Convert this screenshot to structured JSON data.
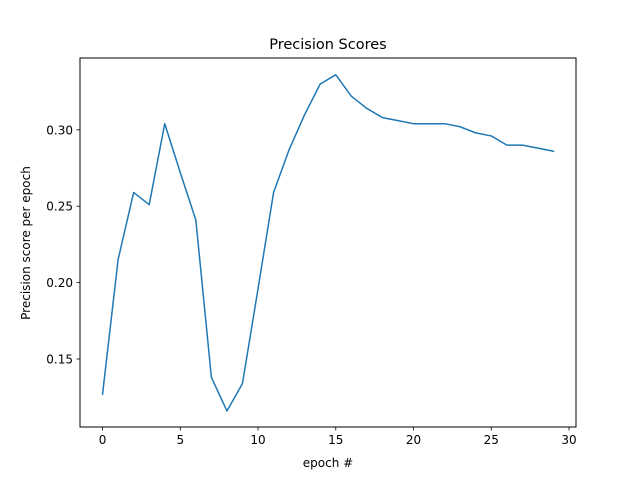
{
  "chart_data": {
    "type": "line",
    "title": "Precision Scores",
    "xlabel": "epoch #",
    "ylabel": "Precision score per epoch",
    "xlim": [
      -1.45,
      30.45
    ],
    "ylim": [
      0.1055,
      0.347
    ],
    "grid": false,
    "x_ticks": [
      0,
      5,
      10,
      15,
      20,
      25,
      30
    ],
    "x_tick_labels": [
      "0",
      "5",
      "10",
      "15",
      "20",
      "25",
      "30"
    ],
    "y_ticks": [
      0.15,
      0.2,
      0.25,
      0.3
    ],
    "y_tick_labels": [
      "0.15",
      "0.20",
      "0.25",
      "0.30"
    ],
    "line_color": "#1f77b4",
    "series": [
      {
        "x": [
          0,
          1,
          2,
          3,
          4,
          5,
          6,
          7,
          8,
          9,
          10,
          11,
          12,
          13,
          14,
          15,
          16,
          17,
          18,
          19,
          20,
          21,
          22,
          23,
          24,
          25,
          26,
          27,
          28,
          29
        ],
        "values": [
          0.127,
          0.215,
          0.259,
          0.251,
          0.304,
          0.272,
          0.241,
          0.138,
          0.116,
          0.134,
          0.196,
          0.259,
          0.287,
          0.31,
          0.33,
          0.336,
          0.322,
          0.314,
          0.308,
          0.306,
          0.304,
          0.304,
          0.304,
          0.302,
          0.298,
          0.296,
          0.29,
          0.29,
          0.288,
          0.286
        ]
      }
    ]
  }
}
